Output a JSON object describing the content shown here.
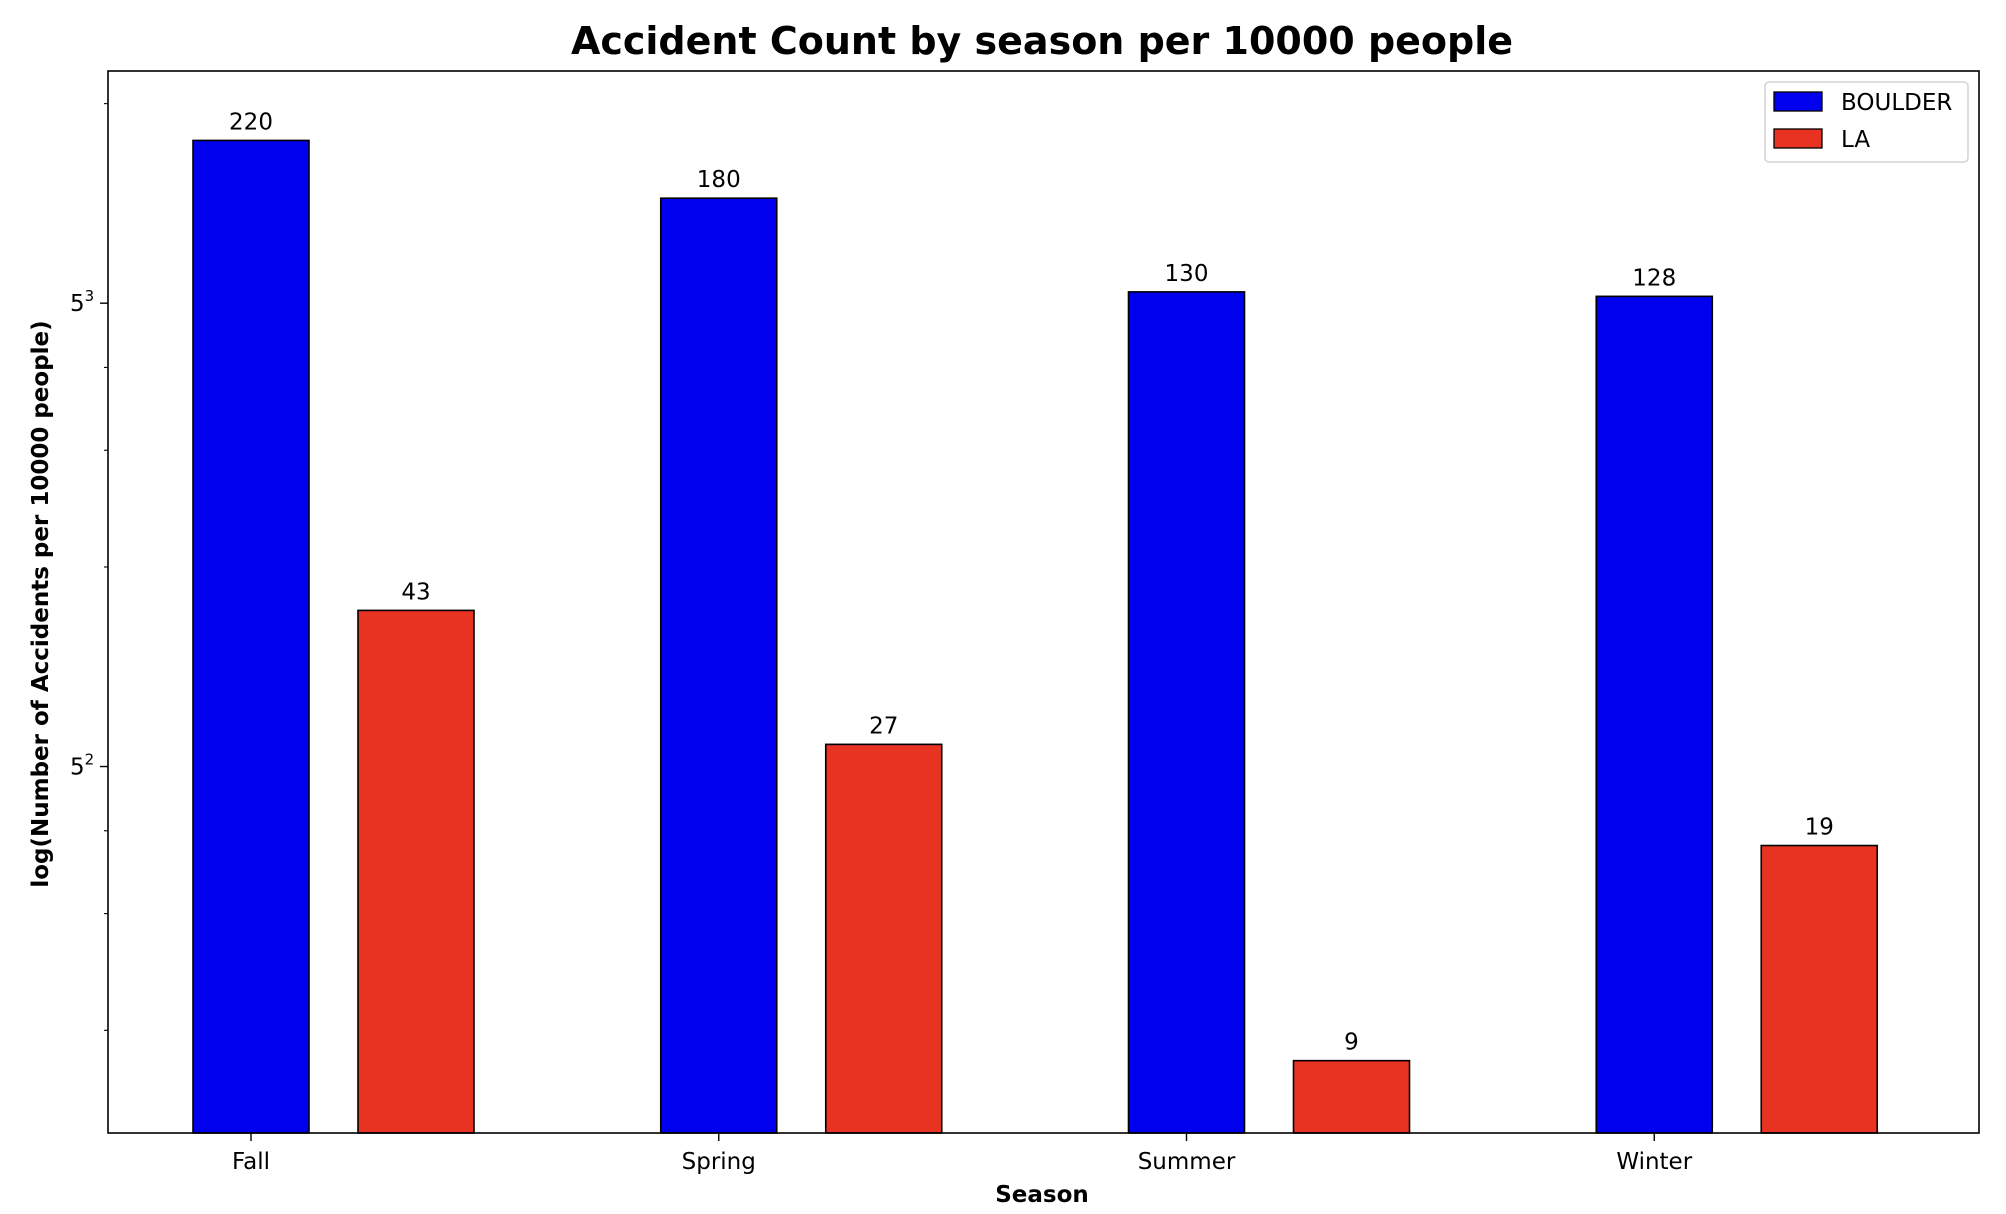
{
  "chart_data": {
    "type": "bar",
    "title": "Accident Count by season per 10000 people",
    "xlabel": "Season",
    "ylabel": "log(Number of Accidents per 10000 people)",
    "categories": [
      "Fall",
      "Spring",
      "Summer",
      "Winter"
    ],
    "series": [
      {
        "name": "BOULDER",
        "color": "#0000ee",
        "values": [
          220,
          180,
          130,
          128
        ]
      },
      {
        "name": "LA",
        "color": "#e83323",
        "values": [
          43,
          27,
          9,
          19
        ]
      }
    ],
    "y_scale": "log",
    "y_log_base": 5,
    "ylim": [
      7,
      280
    ],
    "y_major_ticks": [
      {
        "value": 25,
        "base": "5",
        "exponent": "2"
      },
      {
        "value": 125,
        "base": "5",
        "exponent": "3"
      }
    ],
    "y_minor_ticks": [
      10,
      15,
      20,
      50,
      75,
      100,
      250
    ],
    "grid": false,
    "legend_position": "top-right",
    "bar_edge_color": "#000000"
  }
}
